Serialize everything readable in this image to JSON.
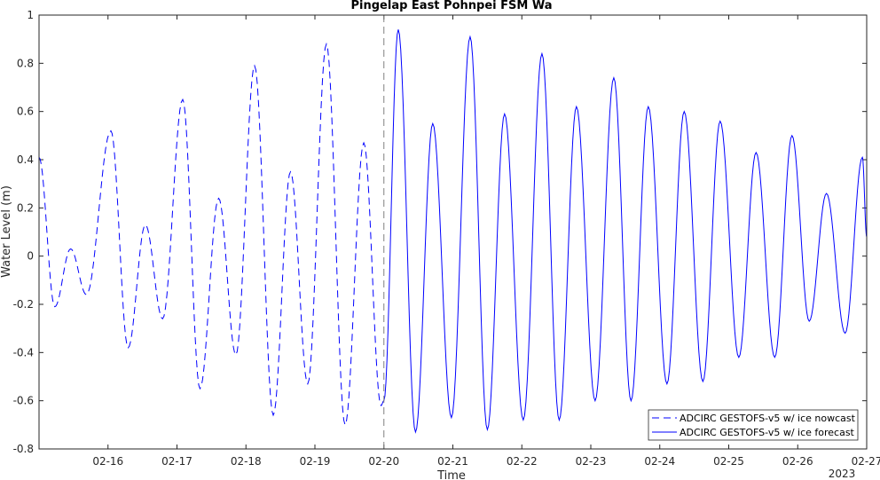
{
  "chart_data": {
    "type": "line",
    "title": "Pingelap East Pohnpei FSM Wa",
    "xlabel": "Time",
    "ylabel": "Water Level (m)",
    "ylim": [
      -0.8,
      1
    ],
    "yticks": [
      "-0.8",
      "-0.6",
      "-0.4",
      "-0.2",
      "0",
      "0.2",
      "0.4",
      "0.6",
      "0.8",
      "1"
    ],
    "xlim": [
      "2023-02-15 00:00",
      "2023-02-27 00:00"
    ],
    "xticks": [
      "02-16",
      "02-17",
      "02-18",
      "02-19",
      "02-20",
      "02-21",
      "02-22",
      "02-23",
      "02-24",
      "02-25",
      "02-26",
      "02-27"
    ],
    "year_label": "2023",
    "grid": false,
    "legend_position": "bottom-right",
    "forecast_start": "2023-02-20 00:00",
    "series": [
      {
        "name": "ADCIRC GESTOFS-v5 w/ ice nowcast",
        "color": "#0000ff",
        "style": "dashed",
        "points": [
          [
            "2023-02-15 00:00",
            0.41
          ],
          [
            "2023-02-15 05:30",
            -0.21
          ],
          [
            "2023-02-15 11:00",
            0.03
          ],
          [
            "2023-02-15 16:30",
            -0.16
          ],
          [
            "2023-02-16 01:00",
            0.52
          ],
          [
            "2023-02-16 07:00",
            -0.38
          ],
          [
            "2023-02-16 13:00",
            0.13
          ],
          [
            "2023-02-16 19:00",
            -0.26
          ],
          [
            "2023-02-17 02:00",
            0.65
          ],
          [
            "2023-02-17 08:00",
            -0.55
          ],
          [
            "2023-02-17 14:30",
            0.24
          ],
          [
            "2023-02-17 20:30",
            -0.41
          ],
          [
            "2023-02-18 03:00",
            0.79
          ],
          [
            "2023-02-18 09:30",
            -0.66
          ],
          [
            "2023-02-18 15:30",
            0.35
          ],
          [
            "2023-02-18 21:30",
            -0.53
          ],
          [
            "2023-02-19 04:00",
            0.88
          ],
          [
            "2023-02-19 10:30",
            -0.7
          ],
          [
            "2023-02-19 17:00",
            0.47
          ],
          [
            "2023-02-19 23:00",
            -0.62
          ],
          [
            "2023-02-20 00:00",
            -0.6
          ]
        ]
      },
      {
        "name": "ADCIRC GESTOFS-v5 w/ ice forecast",
        "color": "#0000ff",
        "style": "solid",
        "points": [
          [
            "2023-02-20 00:00",
            -0.6
          ],
          [
            "2023-02-20 05:00",
            0.94
          ],
          [
            "2023-02-20 11:00",
            -0.73
          ],
          [
            "2023-02-20 17:00",
            0.55
          ],
          [
            "2023-02-20 23:30",
            -0.67
          ],
          [
            "2023-02-21 06:00",
            0.91
          ],
          [
            "2023-02-21 12:00",
            -0.72
          ],
          [
            "2023-02-21 18:00",
            0.59
          ],
          [
            "2023-02-22 00:30",
            -0.68
          ],
          [
            "2023-02-22 07:00",
            0.84
          ],
          [
            "2023-02-22 13:00",
            -0.68
          ],
          [
            "2023-02-22 19:00",
            0.62
          ],
          [
            "2023-02-23 01:30",
            -0.6
          ],
          [
            "2023-02-23 08:00",
            0.74
          ],
          [
            "2023-02-23 14:00",
            -0.6
          ],
          [
            "2023-02-23 20:00",
            0.62
          ],
          [
            "2023-02-24 02:30",
            -0.53
          ],
          [
            "2023-02-24 08:30",
            0.6
          ],
          [
            "2023-02-24 15:00",
            -0.52
          ],
          [
            "2023-02-24 21:00",
            0.56
          ],
          [
            "2023-02-25 03:30",
            -0.42
          ],
          [
            "2023-02-25 09:30",
            0.43
          ],
          [
            "2023-02-25 16:00",
            -0.42
          ],
          [
            "2023-02-25 22:00",
            0.5
          ],
          [
            "2023-02-26 04:00",
            -0.27
          ],
          [
            "2023-02-26 10:00",
            0.26
          ],
          [
            "2023-02-26 16:30",
            -0.32
          ],
          [
            "2023-02-26 22:30",
            0.41
          ],
          [
            "2023-02-27 00:00",
            0.08
          ]
        ]
      }
    ]
  }
}
